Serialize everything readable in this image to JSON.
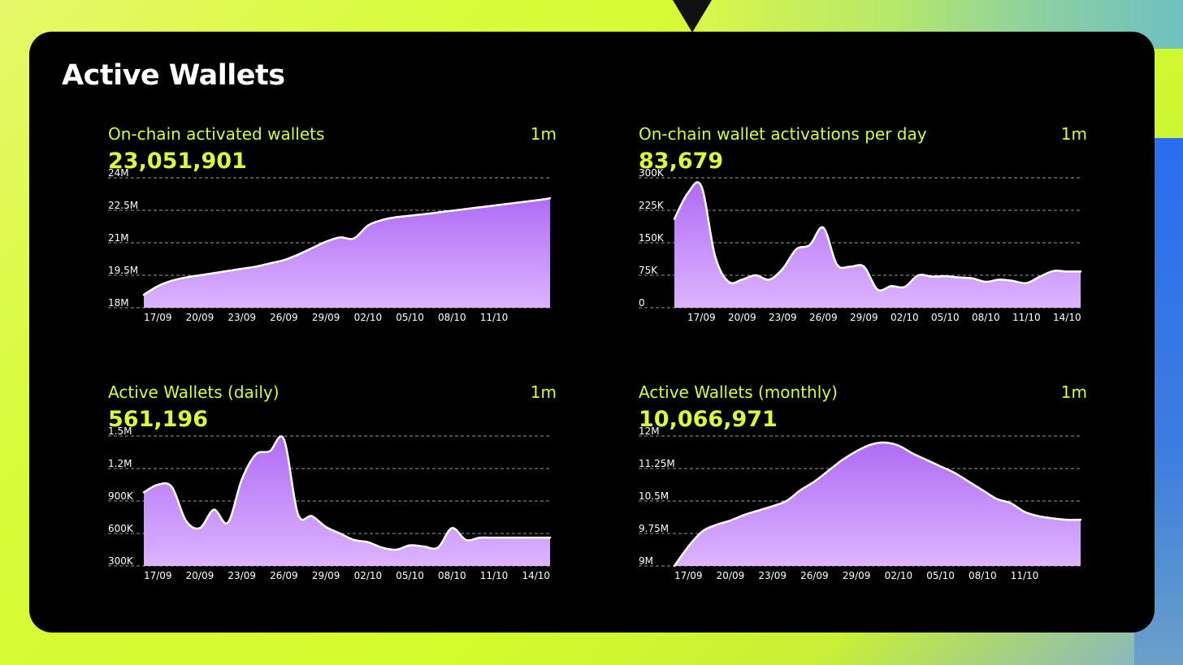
{
  "page": {
    "title": "Active Wallets"
  },
  "colors": {
    "accent": "#d8fb3a",
    "area_top": "#b06cf5",
    "area_bottom": "#dcb4ff",
    "line": "#ffffff",
    "card": "#000000"
  },
  "chart_data": [
    {
      "type": "area",
      "title": "On-chain activated wallets",
      "period": "1m",
      "value": "23,051,901",
      "yticks": [
        "18M",
        "19.5M",
        "21M",
        "22.5M",
        "24M"
      ],
      "ylim": [
        18000000,
        24000000
      ],
      "xticks": [
        "17/09",
        "20/09",
        "23/09",
        "26/09",
        "29/09",
        "02/10",
        "05/10",
        "08/10",
        "11/10"
      ],
      "x": [
        "16/09",
        "17/09",
        "18/09",
        "19/09",
        "20/09",
        "21/09",
        "22/09",
        "23/09",
        "24/09",
        "25/09",
        "26/09",
        "27/09",
        "28/09",
        "29/09",
        "30/09",
        "01/10",
        "02/10",
        "03/10",
        "04/10",
        "05/10",
        "06/10",
        "07/10",
        "08/10",
        "09/10",
        "10/10",
        "11/10",
        "12/10",
        "13/10",
        "14/10",
        "15/10"
      ],
      "values": [
        18600000,
        19000000,
        19250000,
        19400000,
        19500000,
        19600000,
        19700000,
        19800000,
        19900000,
        20050000,
        20200000,
        20450000,
        20750000,
        21050000,
        21250000,
        21200000,
        21800000,
        22050000,
        22180000,
        22250000,
        22320000,
        22400000,
        22480000,
        22560000,
        22640000,
        22720000,
        22800000,
        22880000,
        22960000,
        23051901
      ]
    },
    {
      "type": "area",
      "title": "On-chain wallet activations per day",
      "period": "1m",
      "value": "83,679",
      "yticks": [
        "0",
        "75K",
        "150K",
        "225K",
        "300K"
      ],
      "ylim": [
        0,
        300000
      ],
      "xticks": [
        "17/09",
        "20/09",
        "23/09",
        "26/09",
        "29/09",
        "02/10",
        "05/10",
        "08/10",
        "11/10",
        "14/10"
      ],
      "x": [
        "15/09",
        "16/09",
        "17/09",
        "18/09",
        "19/09",
        "20/09",
        "21/09",
        "22/09",
        "23/09",
        "24/09",
        "25/09",
        "26/09",
        "27/09",
        "28/09",
        "29/09",
        "30/09",
        "01/10",
        "02/10",
        "03/10",
        "04/10",
        "05/10",
        "06/10",
        "07/10",
        "08/10",
        "09/10",
        "10/10",
        "11/10",
        "12/10",
        "13/10",
        "14/10",
        "15/10"
      ],
      "values": [
        205000,
        265000,
        280000,
        120000,
        60000,
        65000,
        75000,
        65000,
        90000,
        135000,
        145000,
        185000,
        100000,
        95000,
        95000,
        42000,
        50000,
        48000,
        75000,
        72000,
        73000,
        70000,
        68000,
        60000,
        65000,
        62000,
        57000,
        72000,
        85000,
        83679,
        83679
      ]
    },
    {
      "type": "area",
      "title": "Active Wallets (daily)",
      "period": "1m",
      "value": "561,196",
      "yticks": [
        "300K",
        "600K",
        "900K",
        "1.2M",
        "1.5M"
      ],
      "ylim": [
        300000,
        1500000
      ],
      "xticks": [
        "17/09",
        "20/09",
        "23/09",
        "26/09",
        "29/09",
        "02/10",
        "05/10",
        "08/10",
        "11/10",
        "14/10"
      ],
      "x": [
        "16/09",
        "17/09",
        "18/09",
        "19/09",
        "20/09",
        "21/09",
        "22/09",
        "23/09",
        "24/09",
        "25/09",
        "26/09",
        "27/09",
        "28/09",
        "29/09",
        "30/09",
        "01/10",
        "02/10",
        "03/10",
        "04/10",
        "05/10",
        "06/10",
        "07/10",
        "08/10",
        "09/10",
        "10/10",
        "11/10",
        "12/10",
        "13/10",
        "14/10",
        "15/10"
      ],
      "values": [
        980000,
        1050000,
        1030000,
        720000,
        650000,
        820000,
        700000,
        1100000,
        1330000,
        1360000,
        1470000,
        780000,
        760000,
        660000,
        600000,
        540000,
        520000,
        470000,
        450000,
        490000,
        480000,
        470000,
        650000,
        540000,
        561196,
        561196,
        561196,
        561196,
        561196,
        561196
      ]
    },
    {
      "type": "area",
      "title": "Active Wallets (monthly)",
      "period": "1m",
      "value": "10,066,971",
      "yticks": [
        "9M",
        "9.75M",
        "10.5M",
        "11.25M",
        "12M"
      ],
      "ylim": [
        9000000,
        12000000
      ],
      "xticks": [
        "17/09",
        "20/09",
        "23/09",
        "26/09",
        "29/09",
        "02/10",
        "05/10",
        "08/10",
        "11/10"
      ],
      "x": [
        "16/09",
        "17/09",
        "18/09",
        "19/09",
        "20/09",
        "21/09",
        "22/09",
        "23/09",
        "24/09",
        "25/09",
        "26/09",
        "27/09",
        "28/09",
        "29/09",
        "30/09",
        "01/10",
        "02/10",
        "03/10",
        "04/10",
        "05/10",
        "06/10",
        "07/10",
        "08/10",
        "09/10",
        "10/10",
        "11/10",
        "12/10",
        "13/10",
        "14/10",
        "15/10"
      ],
      "values": [
        9000000,
        9450000,
        9800000,
        9950000,
        10050000,
        10180000,
        10280000,
        10380000,
        10500000,
        10750000,
        10950000,
        11200000,
        11450000,
        11650000,
        11800000,
        11850000,
        11780000,
        11600000,
        11450000,
        11300000,
        11150000,
        10950000,
        10750000,
        10550000,
        10450000,
        10250000,
        10150000,
        10100000,
        10066971,
        10066971
      ]
    }
  ]
}
